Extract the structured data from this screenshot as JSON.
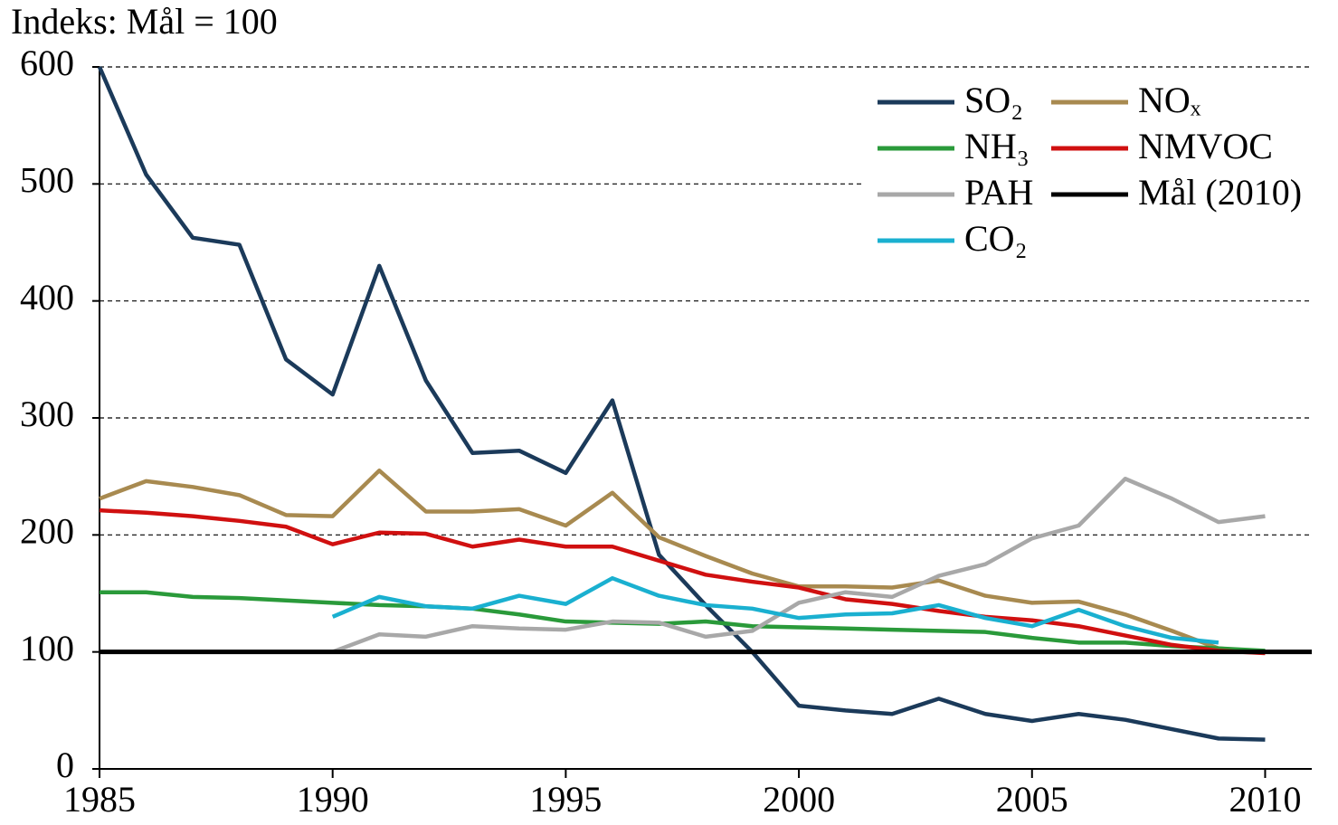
{
  "chart_data": {
    "type": "line",
    "y_label": "Indeks: Mål = 100",
    "x": [
      1985,
      1986,
      1987,
      1988,
      1989,
      1990,
      1991,
      1992,
      1993,
      1994,
      1995,
      1996,
      1997,
      1998,
      1999,
      2000,
      2001,
      2002,
      2003,
      2004,
      2005,
      2006,
      2007,
      2008,
      2009,
      2010
    ],
    "xlim": [
      1985,
      2011
    ],
    "xticks": [
      1985,
      1990,
      1995,
      2000,
      2005,
      2010
    ],
    "ylim": [
      0,
      600
    ],
    "yticks": [
      0,
      100,
      200,
      300,
      400,
      500,
      600
    ],
    "grid": true,
    "legend": "upper right",
    "series": [
      {
        "name": "SO₂",
        "color": "#1b3a5a",
        "values": [
          600,
          508,
          454,
          448,
          350,
          320,
          430,
          332,
          270,
          272,
          253,
          315,
          183,
          140,
          100,
          54,
          50,
          47,
          60,
          47,
          41,
          47,
          42,
          34,
          26,
          25
        ]
      },
      {
        "name": "NOₓ",
        "color": "#a88a50",
        "values": [
          231,
          246,
          241,
          234,
          217,
          216,
          255,
          220,
          220,
          222,
          208,
          236,
          198,
          182,
          167,
          156,
          156,
          155,
          161,
          148,
          142,
          143,
          132,
          118,
          103,
          100
        ]
      },
      {
        "name": "NH₃",
        "color": "#2a9a3a",
        "values": [
          151,
          151,
          147,
          146,
          144,
          142,
          140,
          139,
          137,
          132,
          126,
          125,
          124,
          126,
          122,
          121,
          120,
          119,
          118,
          117,
          112,
          108,
          108,
          105,
          103,
          101
        ]
      },
      {
        "name": "NMVOC",
        "color": "#d01010",
        "values": [
          221,
          219,
          216,
          212,
          207,
          192,
          202,
          201,
          190,
          196,
          190,
          190,
          178,
          166,
          160,
          155,
          145,
          141,
          135,
          130,
          127,
          122,
          114,
          106,
          101,
          99
        ]
      },
      {
        "name": "PAH",
        "color": "#a8a8a8",
        "values": [
          null,
          null,
          null,
          null,
          null,
          100,
          115,
          113,
          122,
          120,
          119,
          126,
          125,
          113,
          118,
          142,
          151,
          147,
          165,
          175,
          197,
          208,
          248,
          231,
          211,
          216
        ]
      },
      {
        "name": "CO₂",
        "color": "#1ab0d0",
        "values": [
          null,
          null,
          null,
          null,
          null,
          130,
          147,
          139,
          137,
          148,
          141,
          163,
          148,
          140,
          137,
          129,
          132,
          133,
          140,
          129,
          122,
          136,
          122,
          112,
          108,
          null
        ]
      }
    ],
    "reference_line": {
      "name": "Mål (2010)",
      "value": 100,
      "color": "#000000"
    }
  }
}
